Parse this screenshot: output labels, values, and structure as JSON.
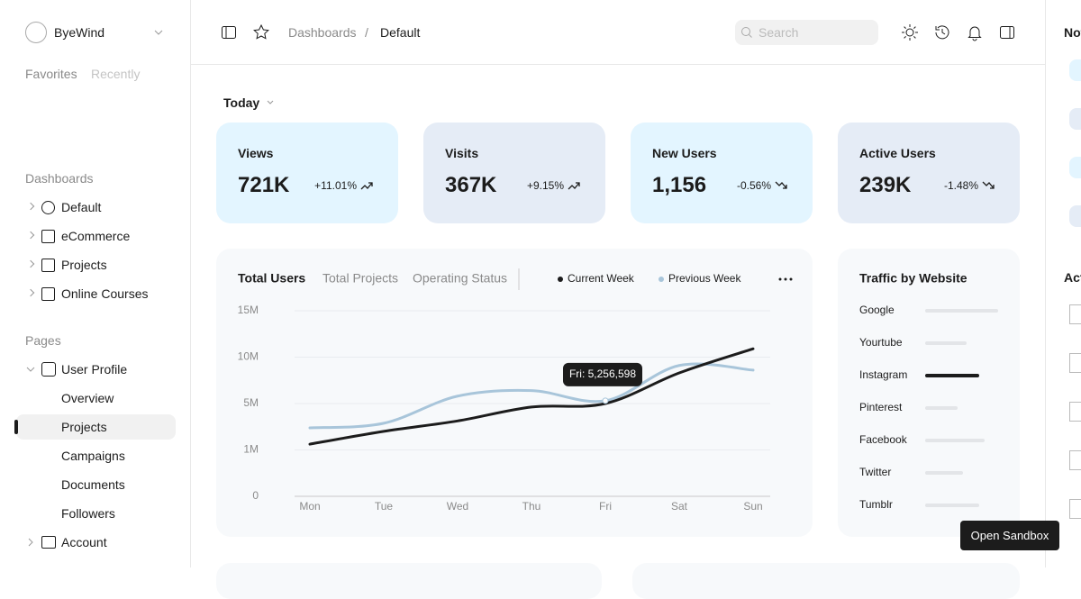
{
  "sidebar": {
    "brand": "ByeWind",
    "tabs": [
      "Favorites",
      "Recently"
    ],
    "dashboards_title": "Dashboards",
    "dashboards": [
      "Default",
      "eCommerce",
      "Projects",
      "Online Courses"
    ],
    "pages_title": "Pages",
    "user_profile": "User Profile",
    "user_profile_items": [
      "Overview",
      "Projects",
      "Campaigns",
      "Documents",
      "Followers"
    ],
    "account": "Account"
  },
  "topbar": {
    "breadcrumb": [
      "Dashboards",
      "Default"
    ],
    "separator": "/",
    "search_placeholder": "Search"
  },
  "filter": "Today",
  "stats": [
    {
      "label": "Views",
      "value": "721K",
      "change": "+11.01%"
    },
    {
      "label": "Visits",
      "value": "367K",
      "change": "+9.15%"
    },
    {
      "label": "New Users",
      "value": "1,156",
      "change": "-0.56%"
    },
    {
      "label": "Active Users",
      "value": "239K",
      "change": "-1.48%"
    }
  ],
  "chart_data": {
    "type": "line",
    "title": "Total Users",
    "tabs": [
      "Total Projects",
      "Operating Status"
    ],
    "categories": [
      "Mon",
      "Tue",
      "Wed",
      "Thu",
      "Fri",
      "Sat",
      "Sun"
    ],
    "series": [
      {
        "name": "Current Week",
        "color": "#1c1c1c",
        "values": [
          1500000,
          2600000,
          3500000,
          4700000,
          5000000,
          8300000,
          10900000
        ]
      },
      {
        "name": "Previous Week",
        "color": "#a8c5da",
        "values": [
          2900000,
          3300000,
          5800000,
          6400000,
          5300000,
          9100000,
          8600000
        ]
      }
    ],
    "ylim": [
      0,
      15000000
    ],
    "yticks": [
      {
        "value": 0,
        "label": "0"
      },
      {
        "value": 1000000,
        "label": "1M"
      },
      {
        "value": 5000000,
        "label": "5M"
      },
      {
        "value": 10000000,
        "label": "10M"
      },
      {
        "value": 15000000,
        "label": "15M"
      }
    ],
    "grid": true,
    "tooltip": "Fri: 5,256,598"
  },
  "traffic": {
    "type": "bar",
    "title": "Traffic by Website",
    "categories": [
      "Google",
      "Yourtube",
      "Instagram",
      "Pinterest",
      "Facebook",
      "Twitter",
      "Tumblr"
    ],
    "values": [
      81,
      46,
      60,
      36,
      66,
      42,
      60
    ],
    "colors": [
      "#e3e5e8",
      "#e3e5e8",
      "#1c1c1c",
      "#e3e5e8",
      "#e3e5e8",
      "#e3e5e8",
      "#e3e5e8"
    ]
  },
  "right_panel": {
    "notifications_title": "Notifications",
    "activities_title": "Activities"
  },
  "sandbox_button": "Open Sandbox"
}
